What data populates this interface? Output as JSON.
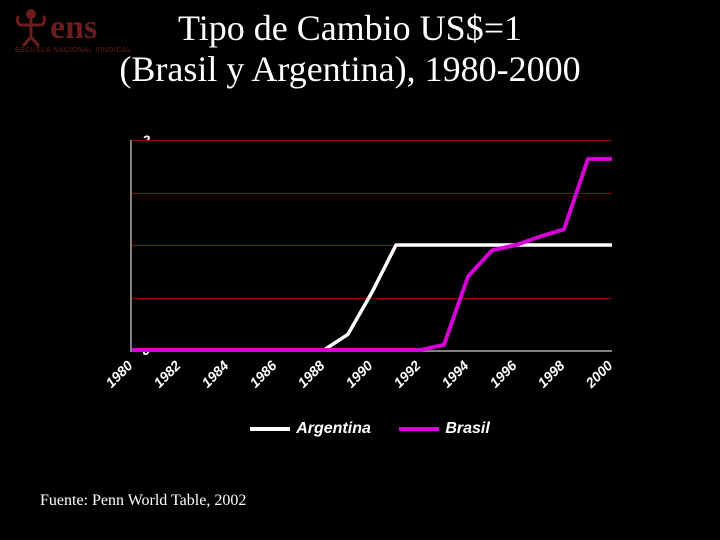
{
  "logo": {
    "text": "ens",
    "subtext": "ESCUELA NACIONAL SINDICAL",
    "color": "#6b1d1d"
  },
  "title": {
    "line1": "Tipo de Cambio US$=1",
    "line2": "(Brasil y Argentina), 1980-2000",
    "color": "#ffffff",
    "fontsize": 36
  },
  "chart": {
    "type": "line",
    "background_color": "#000000",
    "axis_color": "#808080",
    "grid_color": "#900000",
    "ylim": [
      0,
      2
    ],
    "ytick_step": 0.5,
    "yticks": [
      "0",
      "0.5",
      "1",
      "1.5",
      "2"
    ],
    "xticks": [
      "1980",
      "1982",
      "1984",
      "1986",
      "1988",
      "1990",
      "1992",
      "1994",
      "1996",
      "1998",
      "2000"
    ],
    "tick_fontsize": 14,
    "tick_color": "#ffffff",
    "series": [
      {
        "name": "Argentina",
        "color": "#ffffff",
        "width": 3.5,
        "points": [
          [
            1980,
            0
          ],
          [
            1981,
            0
          ],
          [
            1982,
            0
          ],
          [
            1983,
            0
          ],
          [
            1984,
            0
          ],
          [
            1985,
            0
          ],
          [
            1986,
            0
          ],
          [
            1987,
            0
          ],
          [
            1988,
            0
          ],
          [
            1989,
            0.15
          ],
          [
            1990,
            0.55
          ],
          [
            1991,
            1.0
          ],
          [
            1992,
            1.0
          ],
          [
            1993,
            1.0
          ],
          [
            1994,
            1.0
          ],
          [
            1995,
            1.0
          ],
          [
            1996,
            1.0
          ],
          [
            1997,
            1.0
          ],
          [
            1998,
            1.0
          ],
          [
            1999,
            1.0
          ],
          [
            2000,
            1.0
          ]
        ]
      },
      {
        "name": "Brasil",
        "color": "#d400d4",
        "width": 4,
        "points": [
          [
            1980,
            0
          ],
          [
            1981,
            0
          ],
          [
            1982,
            0
          ],
          [
            1983,
            0
          ],
          [
            1984,
            0
          ],
          [
            1985,
            0
          ],
          [
            1986,
            0
          ],
          [
            1987,
            0
          ],
          [
            1988,
            0
          ],
          [
            1989,
            0
          ],
          [
            1990,
            0
          ],
          [
            1991,
            0
          ],
          [
            1992,
            0
          ],
          [
            1993,
            0.05
          ],
          [
            1994,
            0.7
          ],
          [
            1995,
            0.95
          ],
          [
            1996,
            1.0
          ],
          [
            1997,
            1.08
          ],
          [
            1998,
            1.15
          ],
          [
            1999,
            1.82
          ],
          [
            2000,
            1.82
          ]
        ]
      }
    ]
  },
  "legend": {
    "items": [
      {
        "label": "Argentina",
        "color": "#ffffff"
      },
      {
        "label": "Brasil",
        "color": "#d400d4"
      }
    ],
    "label_color": "#ffffff",
    "fontsize": 16
  },
  "source": {
    "text": "Fuente: Penn World Table, 2002",
    "color": "#ffffff",
    "fontsize": 16
  }
}
